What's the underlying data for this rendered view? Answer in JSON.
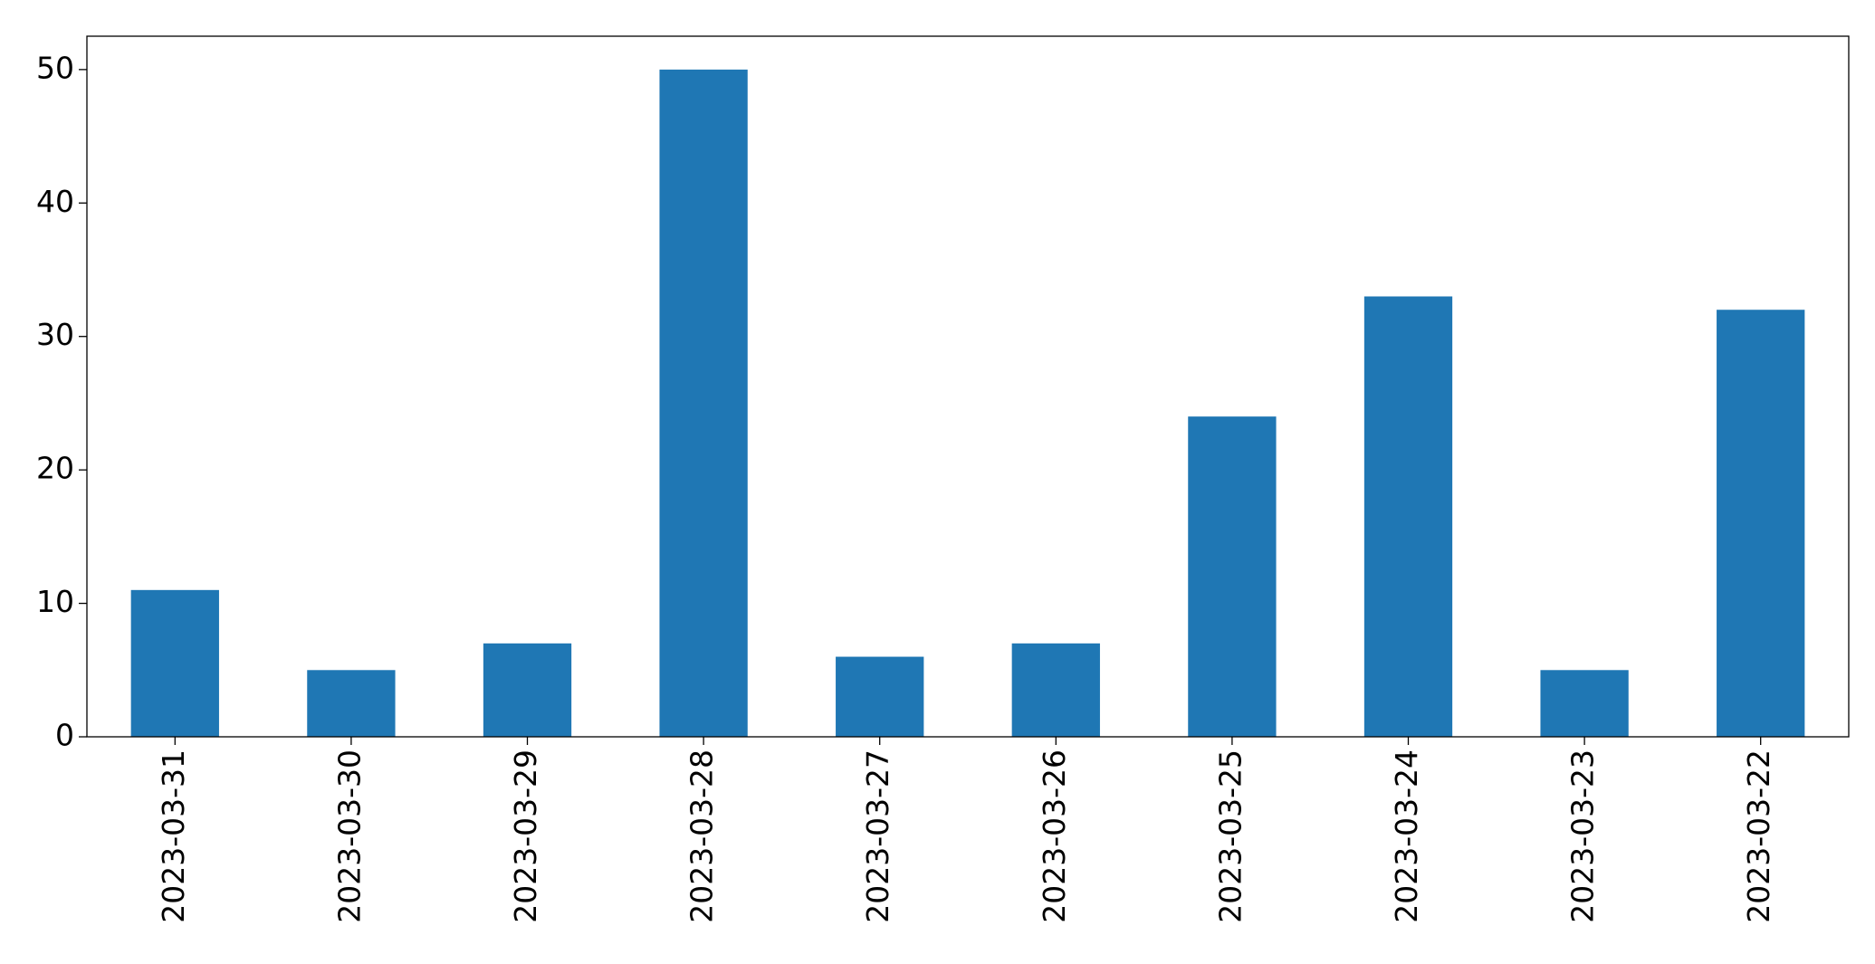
{
  "chart_data": {
    "type": "bar",
    "categories": [
      "2023-03-31",
      "2023-03-30",
      "2023-03-29",
      "2023-03-28",
      "2023-03-27",
      "2023-03-26",
      "2023-03-25",
      "2023-03-24",
      "2023-03-23",
      "2023-03-22"
    ],
    "values": [
      11,
      5,
      7,
      50,
      6,
      7,
      24,
      33,
      5,
      32
    ],
    "color": "#1f77b4",
    "ylim": [
      0,
      52.5
    ],
    "yticks": [
      0,
      10,
      20,
      30,
      40,
      50
    ],
    "grid": false
  }
}
